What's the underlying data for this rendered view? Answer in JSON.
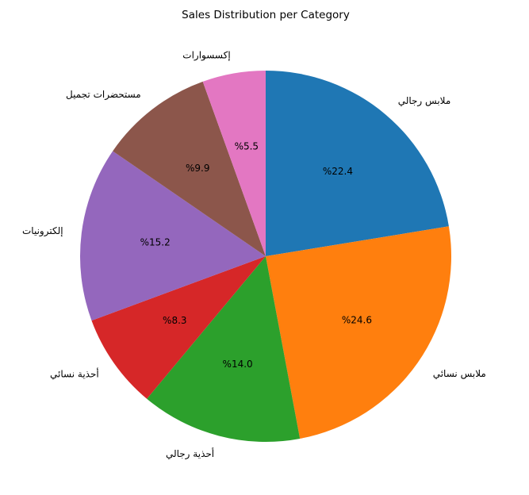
{
  "chart_data": {
    "type": "pie",
    "title": "Sales Distribution per Category",
    "start_angle_deg": 90,
    "direction": "clockwise",
    "categories": [
      "ملابس رجالي",
      "ملابس نسائي",
      "أحذية رجالي",
      "أحذية نسائي",
      "إلكترونيات",
      "مستحضرات تجميل",
      "إكسسوارات"
    ],
    "values": [
      22.4,
      24.6,
      14.0,
      8.3,
      15.2,
      9.9,
      5.5
    ],
    "value_labels": [
      "%22.4",
      "%24.6",
      "%14.0",
      "%8.3",
      "%15.2",
      "%9.9",
      "%5.5"
    ],
    "colors": [
      "#1f77b4",
      "#ff7f0e",
      "#2ca02c",
      "#d62728",
      "#9467bd",
      "#8c564b",
      "#e377c2"
    ]
  }
}
